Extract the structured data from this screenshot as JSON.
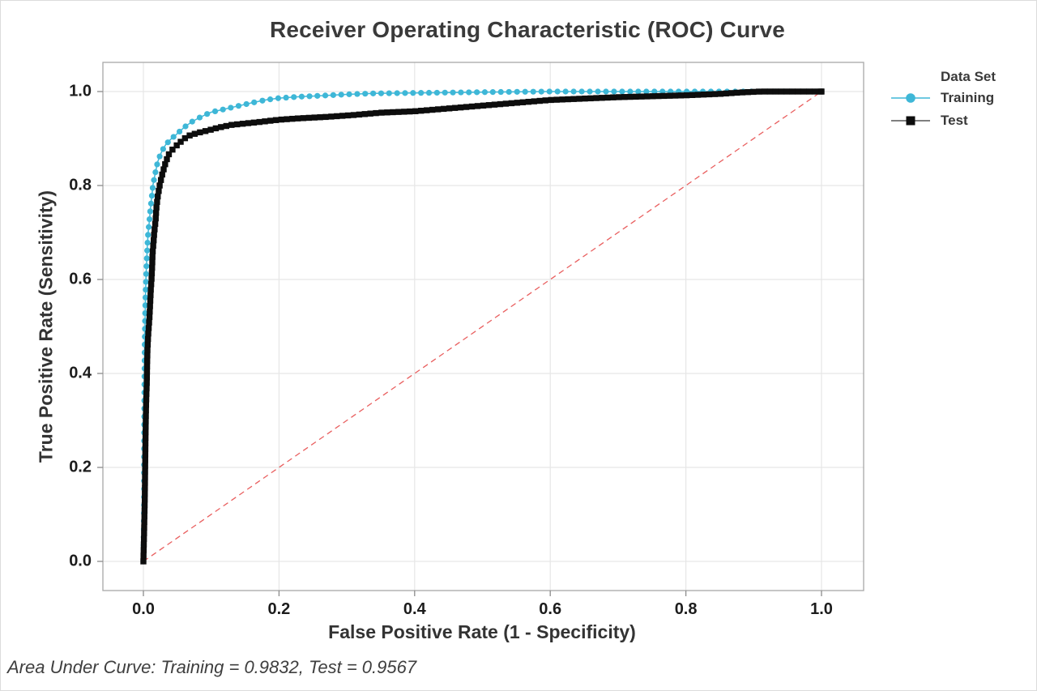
{
  "title": "Receiver Operating Characteristic (ROC) Curve",
  "footer": "Area Under Curve: Training = 0.9832, Test = 0.9567",
  "legend": {
    "title": "Data Set",
    "items": [
      {
        "label": "Training",
        "marker": "circle",
        "color": "#3eb7d7"
      },
      {
        "label": "Test",
        "marker": "square",
        "color": "#0d0d0d"
      }
    ]
  },
  "axes": {
    "x": {
      "label": "False Positive Rate (1 - Specificity)",
      "ticks": [
        "0.0",
        "0.2",
        "0.4",
        "0.6",
        "0.8",
        "1.0"
      ],
      "tick_values": [
        0,
        0.2,
        0.4,
        0.6,
        0.8,
        1.0
      ]
    },
    "y": {
      "label": "True Positive Rate (Sensitivity)",
      "ticks": [
        "0.0",
        "0.2",
        "0.4",
        "0.6",
        "0.8",
        "1.0"
      ],
      "tick_values": [
        0,
        0.2,
        0.4,
        0.6,
        0.8,
        1.0
      ]
    }
  },
  "colors": {
    "grid": "#e6e6e6",
    "frame": "#a8a8a8",
    "tick": "#8c8c8c",
    "reference": "#e95f5f",
    "training": "#3eb7d7",
    "test": "#0d0d0d"
  },
  "chart_data": {
    "type": "line",
    "title": "Receiver Operating Characteristic (ROC) Curve",
    "xlabel": "False Positive Rate (1 - Specificity)",
    "ylabel": "True Positive Rate (Sensitivity)",
    "xlim": [
      0,
      1
    ],
    "ylim": [
      0,
      1
    ],
    "grid": true,
    "legend_position": "right",
    "legend_title": "Data Set",
    "reference_line": {
      "name": "chance",
      "from": [
        0,
        0
      ],
      "to": [
        1,
        1
      ],
      "style": "dashed",
      "color": "#e95f5f"
    },
    "series": [
      {
        "name": "Training",
        "marker": "circle",
        "color": "#3eb7d7",
        "auc": 0.9832,
        "points": [
          [
            0,
            0
          ],
          [
            0.001,
            0.12
          ],
          [
            0.001,
            0.25
          ],
          [
            0.0015,
            0.38
          ],
          [
            0.002,
            0.47
          ],
          [
            0.0025,
            0.52
          ],
          [
            0.003,
            0.56
          ],
          [
            0.004,
            0.61
          ],
          [
            0.005,
            0.645
          ],
          [
            0.006,
            0.675
          ],
          [
            0.007,
            0.7
          ],
          [
            0.0085,
            0.72
          ],
          [
            0.01,
            0.745
          ],
          [
            0.0115,
            0.765
          ],
          [
            0.013,
            0.785
          ],
          [
            0.014,
            0.8
          ],
          [
            0.016,
            0.815
          ],
          [
            0.018,
            0.83
          ],
          [
            0.021,
            0.85
          ],
          [
            0.024,
            0.862
          ],
          [
            0.028,
            0.875
          ],
          [
            0.033,
            0.887
          ],
          [
            0.04,
            0.898
          ],
          [
            0.048,
            0.908
          ],
          [
            0.055,
            0.917
          ],
          [
            0.063,
            0.927
          ],
          [
            0.072,
            0.936
          ],
          [
            0.082,
            0.944
          ],
          [
            0.092,
            0.951
          ],
          [
            0.1,
            0.956
          ],
          [
            0.115,
            0.961
          ],
          [
            0.13,
            0.966
          ],
          [
            0.145,
            0.971
          ],
          [
            0.16,
            0.976
          ],
          [
            0.18,
            0.982
          ],
          [
            0.2,
            0.986
          ],
          [
            0.23,
            0.989
          ],
          [
            0.26,
            0.991
          ],
          [
            0.3,
            0.994
          ],
          [
            0.34,
            0.996
          ],
          [
            0.4,
            0.997
          ],
          [
            0.46,
            0.998
          ],
          [
            0.52,
            0.999
          ],
          [
            0.6,
            1.0
          ],
          [
            0.7,
            1.0
          ],
          [
            0.8,
            1.0
          ],
          [
            0.9,
            1.0
          ],
          [
            1.0,
            1.0
          ]
        ]
      },
      {
        "name": "Test",
        "marker": "square",
        "color": "#0d0d0d",
        "auc": 0.9567,
        "points": [
          [
            0,
            0
          ],
          [
            0.001,
            0.06
          ],
          [
            0.002,
            0.13
          ],
          [
            0.0025,
            0.19
          ],
          [
            0.003,
            0.25
          ],
          [
            0.0035,
            0.3
          ],
          [
            0.004,
            0.335
          ],
          [
            0.005,
            0.38
          ],
          [
            0.0055,
            0.42
          ],
          [
            0.006,
            0.45
          ],
          [
            0.007,
            0.48
          ],
          [
            0.008,
            0.5
          ],
          [
            0.009,
            0.52
          ],
          [
            0.01,
            0.55
          ],
          [
            0.011,
            0.58
          ],
          [
            0.012,
            0.6
          ],
          [
            0.013,
            0.63
          ],
          [
            0.0135,
            0.655
          ],
          [
            0.015,
            0.68
          ],
          [
            0.016,
            0.7
          ],
          [
            0.018,
            0.725
          ],
          [
            0.019,
            0.75
          ],
          [
            0.021,
            0.775
          ],
          [
            0.024,
            0.8
          ],
          [
            0.028,
            0.825
          ],
          [
            0.033,
            0.85
          ],
          [
            0.038,
            0.868
          ],
          [
            0.045,
            0.88
          ],
          [
            0.055,
            0.893
          ],
          [
            0.065,
            0.905
          ],
          [
            0.08,
            0.912
          ],
          [
            0.095,
            0.917
          ],
          [
            0.11,
            0.923
          ],
          [
            0.13,
            0.929
          ],
          [
            0.15,
            0.932
          ],
          [
            0.17,
            0.935
          ],
          [
            0.2,
            0.94
          ],
          [
            0.23,
            0.943
          ],
          [
            0.27,
            0.946
          ],
          [
            0.31,
            0.95
          ],
          [
            0.35,
            0.955
          ],
          [
            0.4,
            0.958
          ],
          [
            0.45,
            0.964
          ],
          [
            0.5,
            0.97
          ],
          [
            0.55,
            0.976
          ],
          [
            0.6,
            0.982
          ],
          [
            0.65,
            0.985
          ],
          [
            0.7,
            0.988
          ],
          [
            0.75,
            0.99
          ],
          [
            0.8,
            0.992
          ],
          [
            0.85,
            0.995
          ],
          [
            0.88,
            0.998
          ],
          [
            0.91,
            1.0
          ],
          [
            1.0,
            1.0
          ]
        ]
      }
    ]
  }
}
